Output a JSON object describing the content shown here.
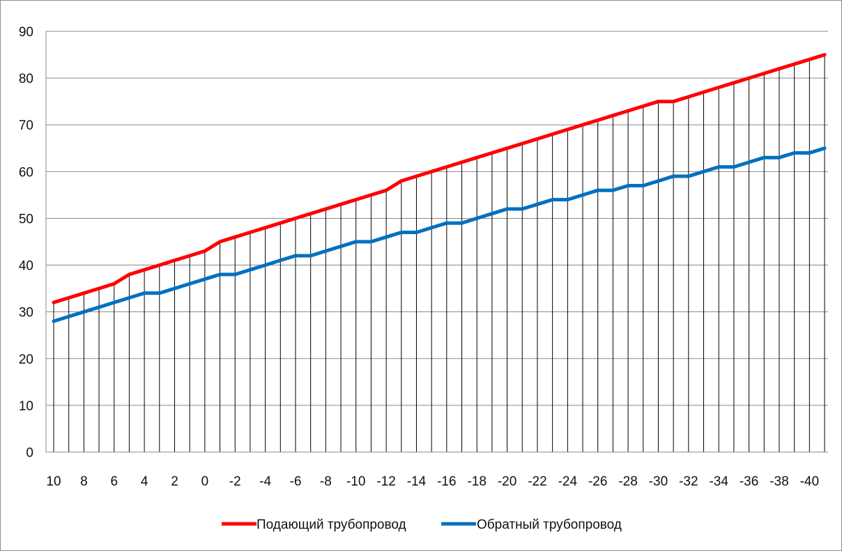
{
  "chart_data": {
    "type": "line",
    "title": "",
    "xlabel": "",
    "ylabel": "",
    "ylim": [
      0,
      90
    ],
    "yticks": [
      0,
      10,
      20,
      30,
      40,
      50,
      60,
      70,
      80,
      90
    ],
    "x": [
      10,
      9,
      8,
      7,
      6,
      5,
      4,
      3,
      2,
      1,
      0,
      -1,
      -2,
      -3,
      -4,
      -5,
      -6,
      -7,
      -8,
      -9,
      -10,
      -11,
      -12,
      -13,
      -14,
      -15,
      -16,
      -17,
      -18,
      -19,
      -20,
      -21,
      -22,
      -23,
      -24,
      -25,
      -26,
      -27,
      -28,
      -29,
      -30,
      -31,
      -32,
      -33,
      -34,
      -35,
      -36,
      -37,
      -38,
      -39,
      -40,
      -41
    ],
    "x_tick_labels": [
      "10",
      "8",
      "6",
      "4",
      "2",
      "0",
      "-2",
      "-4",
      "-6",
      "-8",
      "-10",
      "-12",
      "-14",
      "-16",
      "-18",
      "-20",
      "-22",
      "-24",
      "-26",
      "-28",
      "-30",
      "-32",
      "-34",
      "-36",
      "-38",
      "-40"
    ],
    "grid": "horizontal major gridlines; vertical drop lines at every point",
    "legend_position": "bottom",
    "series": [
      {
        "name": "Подающий трубопровод",
        "color": "#ff0000",
        "values": [
          32,
          33,
          34,
          35,
          36,
          38,
          39,
          40,
          41,
          42,
          43,
          45,
          46,
          47,
          48,
          49,
          50,
          51,
          52,
          53,
          54,
          55,
          56,
          58,
          59,
          60,
          61,
          62,
          63,
          64,
          65,
          66,
          67,
          68,
          69,
          70,
          71,
          72,
          73,
          74,
          75,
          75,
          76,
          77,
          78,
          79,
          80,
          81,
          82,
          83,
          84,
          85
        ]
      },
      {
        "name": "Обратный трубопровод",
        "color": "#0070c0",
        "values": [
          28,
          29,
          30,
          31,
          32,
          33,
          34,
          34,
          35,
          36,
          37,
          38,
          38,
          39,
          40,
          41,
          42,
          42,
          43,
          44,
          45,
          45,
          46,
          47,
          47,
          48,
          49,
          49,
          50,
          51,
          52,
          52,
          53,
          54,
          54,
          55,
          56,
          56,
          57,
          57,
          58,
          59,
          59,
          60,
          61,
          61,
          62,
          63,
          63,
          64,
          64,
          65
        ]
      }
    ]
  }
}
